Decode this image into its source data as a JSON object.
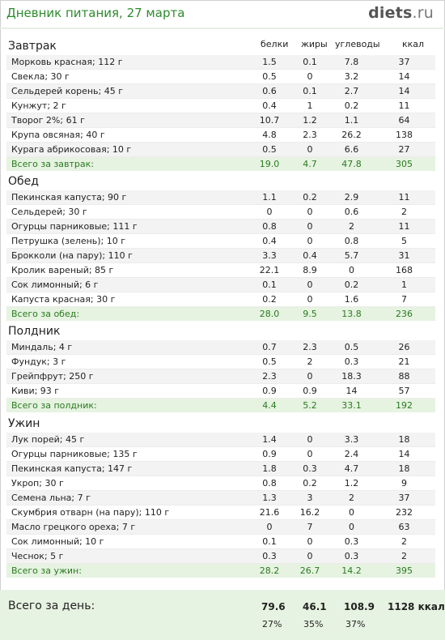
{
  "header": {
    "title": "Дневник питания, 27 марта",
    "logo_main": "diets",
    "logo_tld": ".ru"
  },
  "columns": {
    "protein": "белки",
    "fat": "жиры",
    "carbs": "углеводы",
    "kcal": "ккал"
  },
  "meals": [
    {
      "title": "Завтрак",
      "items": [
        {
          "name": "Морковь красная; 112 г",
          "protein": "1.5",
          "fat": "0.1",
          "carbs": "7.8",
          "kcal": "37"
        },
        {
          "name": "Свекла; 30 г",
          "protein": "0.5",
          "fat": "0",
          "carbs": "3.2",
          "kcal": "14"
        },
        {
          "name": "Сельдерей корень; 45 г",
          "protein": "0.6",
          "fat": "0.1",
          "carbs": "2.7",
          "kcal": "14"
        },
        {
          "name": "Кунжут; 2 г",
          "protein": "0.4",
          "fat": "1",
          "carbs": "0.2",
          "kcal": "11"
        },
        {
          "name": "Творог 2%; 61 г",
          "protein": "10.7",
          "fat": "1.2",
          "carbs": "1.1",
          "kcal": "64"
        },
        {
          "name": "Крупа овсяная; 40 г",
          "protein": "4.8",
          "fat": "2.3",
          "carbs": "26.2",
          "kcal": "138"
        },
        {
          "name": "Курага абрикосовая; 10 г",
          "protein": "0.5",
          "fat": "0",
          "carbs": "6.6",
          "kcal": "27"
        }
      ],
      "total": {
        "label": "Всего за завтрак:",
        "protein": "19.0",
        "fat": "4.7",
        "carbs": "47.8",
        "kcal": "305"
      }
    },
    {
      "title": "Обед",
      "items": [
        {
          "name": "Пекинская капуста; 90 г",
          "protein": "1.1",
          "fat": "0.2",
          "carbs": "2.9",
          "kcal": "11"
        },
        {
          "name": "Сельдерей; 30 г",
          "protein": "0",
          "fat": "0",
          "carbs": "0.6",
          "kcal": "2"
        },
        {
          "name": "Огурцы парниковые; 111 г",
          "protein": "0.8",
          "fat": "0",
          "carbs": "2",
          "kcal": "11"
        },
        {
          "name": "Петрушка (зелень); 10 г",
          "protein": "0.4",
          "fat": "0",
          "carbs": "0.8",
          "kcal": "5"
        },
        {
          "name": "Брокколи (на пару); 110 г",
          "protein": "3.3",
          "fat": "0.4",
          "carbs": "5.7",
          "kcal": "31"
        },
        {
          "name": "Кролик вареный; 85 г",
          "protein": "22.1",
          "fat": "8.9",
          "carbs": "0",
          "kcal": "168"
        },
        {
          "name": "Сок лимонный; 6 г",
          "protein": "0.1",
          "fat": "0",
          "carbs": "0.2",
          "kcal": "1"
        },
        {
          "name": "Капуста красная; 30 г",
          "protein": "0.2",
          "fat": "0",
          "carbs": "1.6",
          "kcal": "7"
        }
      ],
      "total": {
        "label": "Всего за обед:",
        "protein": "28.0",
        "fat": "9.5",
        "carbs": "13.8",
        "kcal": "236"
      }
    },
    {
      "title": "Полдник",
      "items": [
        {
          "name": "Миндаль; 4 г",
          "protein": "0.7",
          "fat": "2.3",
          "carbs": "0.5",
          "kcal": "26"
        },
        {
          "name": "Фундук; 3 г",
          "protein": "0.5",
          "fat": "2",
          "carbs": "0.3",
          "kcal": "21"
        },
        {
          "name": "Грейпфрут; 250 г",
          "protein": "2.3",
          "fat": "0",
          "carbs": "18.3",
          "kcal": "88"
        },
        {
          "name": "Киви; 93 г",
          "protein": "0.9",
          "fat": "0.9",
          "carbs": "14",
          "kcal": "57"
        }
      ],
      "total": {
        "label": "Всего за полдник:",
        "protein": "4.4",
        "fat": "5.2",
        "carbs": "33.1",
        "kcal": "192"
      }
    },
    {
      "title": "Ужин",
      "items": [
        {
          "name": "Лук порей; 45 г",
          "protein": "1.4",
          "fat": "0",
          "carbs": "3.3",
          "kcal": "18"
        },
        {
          "name": "Огурцы парниковые; 135 г",
          "protein": "0.9",
          "fat": "0",
          "carbs": "2.4",
          "kcal": "14"
        },
        {
          "name": "Пекинская капуста; 147 г",
          "protein": "1.8",
          "fat": "0.3",
          "carbs": "4.7",
          "kcal": "18"
        },
        {
          "name": "Укроп; 30 г",
          "protein": "0.8",
          "fat": "0.2",
          "carbs": "1.2",
          "kcal": "9"
        },
        {
          "name": "Семена льна; 7 г",
          "protein": "1.3",
          "fat": "3",
          "carbs": "2",
          "kcal": "37"
        },
        {
          "name": "Скумбрия отварн (на пару); 110 г",
          "protein": "21.6",
          "fat": "16.2",
          "carbs": "0",
          "kcal": "232"
        },
        {
          "name": "Масло грецкого ореха; 7 г",
          "protein": "0",
          "fat": "7",
          "carbs": "0",
          "kcal": "63"
        },
        {
          "name": "Сок лимонный; 10 г",
          "protein": "0.1",
          "fat": "0",
          "carbs": "0.3",
          "kcal": "2"
        },
        {
          "name": "Чеснок; 5 г",
          "protein": "0.3",
          "fat": "0",
          "carbs": "0.3",
          "kcal": "2"
        }
      ],
      "total": {
        "label": "Всего за ужин:",
        "protein": "28.2",
        "fat": "26.7",
        "carbs": "14.2",
        "kcal": "395"
      }
    }
  ],
  "day_total": {
    "label": "Всего за день:",
    "protein": "79.6",
    "fat": "46.1",
    "carbs": "108.9",
    "kcal": "1128 ккал",
    "protein_pct": "27%",
    "fat_pct": "35%",
    "carbs_pct": "37%"
  }
}
